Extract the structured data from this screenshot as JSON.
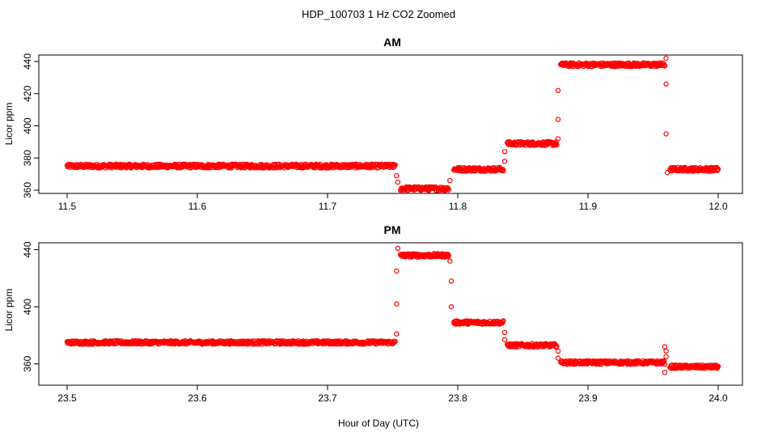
{
  "figure": {
    "title": "HDP_100703  1 Hz CO2 Zoomed",
    "xlabel": "Hour of Day (UTC)"
  },
  "colors": {
    "points": "#ff0000",
    "axes": "#000000",
    "background": "#ffffff"
  },
  "chart_data": [
    {
      "type": "scatter",
      "title": "AM",
      "ylabel": "Licor ppm",
      "xlim": [
        11.5,
        12.0
      ],
      "ylim": [
        360,
        442
      ],
      "xticks": [
        "11.5",
        "11.6",
        "11.7",
        "11.8",
        "11.9",
        "12.0"
      ],
      "yticks": [
        "360",
        "380",
        "400",
        "420",
        "440"
      ],
      "segments": [
        {
          "x": [
            11.5,
            11.752
          ],
          "y": 375
        },
        {
          "x": [
            11.756,
            11.793
          ],
          "y": 361
        },
        {
          "x": [
            11.797,
            11.835
          ],
          "y": 373
        },
        {
          "x": [
            11.838,
            11.876
          ],
          "y": 389
        },
        {
          "x": [
            11.879,
            11.959
          ],
          "y": 438
        },
        {
          "x": [
            11.963,
            12.0
          ],
          "y": 373
        }
      ],
      "points": [
        {
          "x": 11.753,
          "y": 369
        },
        {
          "x": 11.754,
          "y": 365
        },
        {
          "x": 11.794,
          "y": 366
        },
        {
          "x": 11.836,
          "y": 378
        },
        {
          "x": 11.836,
          "y": 384
        },
        {
          "x": 11.877,
          "y": 392
        },
        {
          "x": 11.877,
          "y": 404
        },
        {
          "x": 11.877,
          "y": 422
        },
        {
          "x": 11.96,
          "y": 442
        },
        {
          "x": 11.96,
          "y": 426
        },
        {
          "x": 11.96,
          "y": 395
        },
        {
          "x": 11.961,
          "y": 371
        }
      ]
    },
    {
      "type": "scatter",
      "title": "PM",
      "ylabel": "Licor ppm",
      "xlim": [
        23.5,
        24.0
      ],
      "ylim": [
        353,
        442
      ],
      "xticks": [
        "23.5",
        "23.6",
        "23.7",
        "23.8",
        "23.9",
        "24.0"
      ],
      "yticks": [
        "360",
        "400",
        "440"
      ],
      "segments": [
        {
          "x": [
            23.5,
            23.752
          ],
          "y": 375
        },
        {
          "x": [
            23.756,
            23.793
          ],
          "y": 436
        },
        {
          "x": [
            23.797,
            23.835
          ],
          "y": 389
        },
        {
          "x": [
            23.838,
            23.876
          ],
          "y": 373
        },
        {
          "x": [
            23.879,
            23.959
          ],
          "y": 361
        },
        {
          "x": [
            23.963,
            24.0
          ],
          "y": 358
        }
      ],
      "points": [
        {
          "x": 23.753,
          "y": 381
        },
        {
          "x": 23.753,
          "y": 402
        },
        {
          "x": 23.753,
          "y": 425
        },
        {
          "x": 23.754,
          "y": 441
        },
        {
          "x": 23.794,
          "y": 432
        },
        {
          "x": 23.795,
          "y": 418
        },
        {
          "x": 23.795,
          "y": 400
        },
        {
          "x": 23.836,
          "y": 382
        },
        {
          "x": 23.836,
          "y": 377
        },
        {
          "x": 23.877,
          "y": 369
        },
        {
          "x": 23.877,
          "y": 364
        },
        {
          "x": 23.959,
          "y": 372
        },
        {
          "x": 23.96,
          "y": 369
        },
        {
          "x": 23.96,
          "y": 365
        },
        {
          "x": 23.959,
          "y": 354
        }
      ]
    }
  ]
}
